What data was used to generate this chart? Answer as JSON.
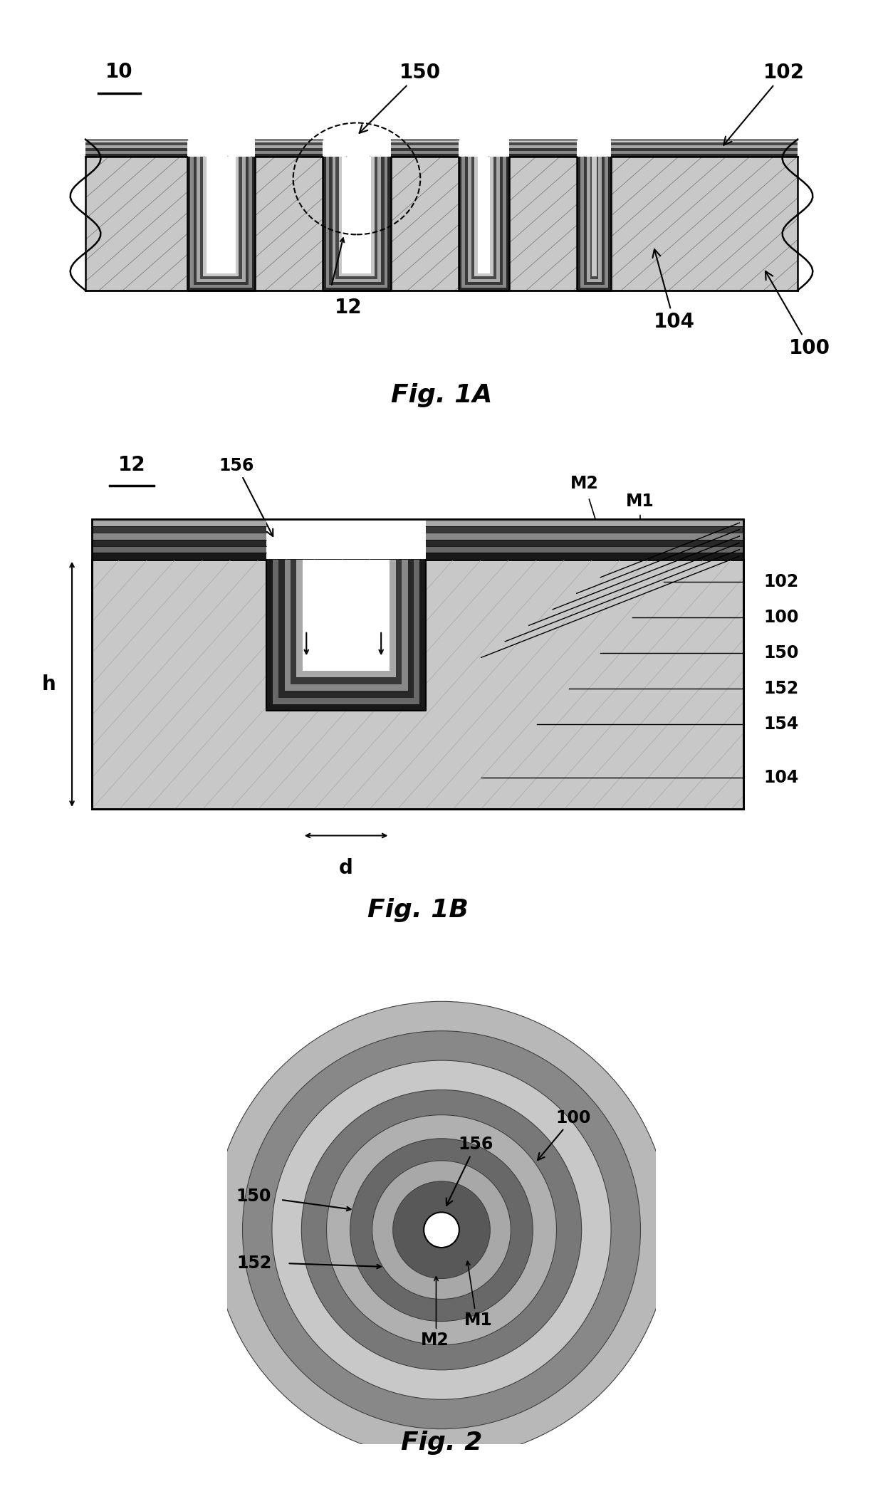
{
  "fig_width": 12.4,
  "fig_height": 20.91,
  "bg_color": "#ffffff",
  "substrate_gray": "#c0c0c0",
  "hatch_gray": "#a0a0a0",
  "light_gray": "#e0e0e0",
  "dark_gray": "#707070",
  "label_fontsize": 18,
  "fig_label_fontsize": 26,
  "annot_fontsize": 17,
  "line_color": "#000000",
  "fig1A_label": "Fig. 1A",
  "fig1B_label": "Fig. 1B",
  "fig2_label": "Fig. 2",
  "layer_colors_1b": [
    "#282828",
    "#787878",
    "#383838",
    "#989898",
    "#484848",
    "#b8b8b8"
  ],
  "ring_colors": [
    "#b8b8b8",
    "#888888",
    "#c8c8c8",
    "#787878",
    "#b0b0b0",
    "#686868",
    "#a8a8a8",
    "#585858"
  ],
  "ring_radii": [
    1.55,
    1.35,
    1.15,
    0.95,
    0.78,
    0.62,
    0.47,
    0.33
  ]
}
